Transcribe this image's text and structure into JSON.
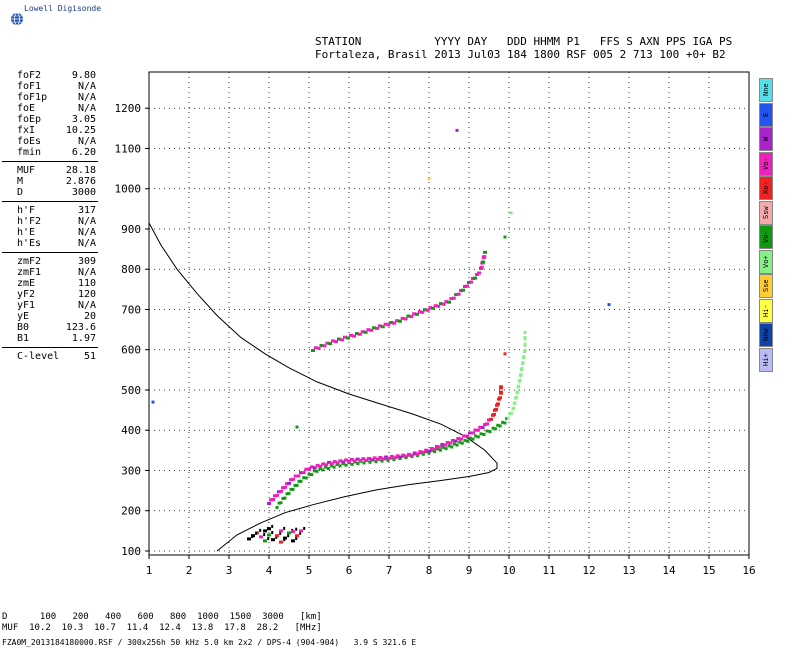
{
  "logo": {
    "text": "Lowell Digisonde",
    "icon": "globe-icon"
  },
  "header": {
    "line1": "STATION           YYYY DAY   DDD HHMM P1   FFS S AXN PPS IGA PS",
    "line2": "Fortaleza, Brasil 2013 Jul03 184 1800 RSF 005 2 713 100 +0+ B2"
  },
  "params": {
    "group1": [
      {
        "name": "foF2",
        "value": "9.80"
      },
      {
        "name": "foF1",
        "value": "N/A"
      },
      {
        "name": "foF1p",
        "value": "N/A"
      },
      {
        "name": "foE",
        "value": "N/A"
      },
      {
        "name": "foEp",
        "value": "3.05"
      },
      {
        "name": "fxI",
        "value": "10.25"
      },
      {
        "name": "foEs",
        "value": "N/A"
      },
      {
        "name": "fmin",
        "value": "6.20"
      }
    ],
    "group2": [
      {
        "name": "MUF",
        "value": "28.18"
      },
      {
        "name": "M",
        "value": "2.876"
      },
      {
        "name": "D",
        "value": "3000"
      }
    ],
    "group3": [
      {
        "name": "h'F",
        "value": "317"
      },
      {
        "name": "h'F2",
        "value": "N/A"
      },
      {
        "name": "h'E",
        "value": "N/A"
      },
      {
        "name": "h'Es",
        "value": "N/A"
      }
    ],
    "group4": [
      {
        "name": "zmF2",
        "value": "309"
      },
      {
        "name": "zmF1",
        "value": "N/A"
      },
      {
        "name": "zmE",
        "value": "110"
      },
      {
        "name": "yF2",
        "value": "120"
      },
      {
        "name": "yF1",
        "value": "N/A"
      },
      {
        "name": "yE",
        "value": "20"
      },
      {
        "name": "B0",
        "value": "123.6"
      },
      {
        "name": "B1",
        "value": "1.97"
      }
    ],
    "group5": [
      {
        "name": "C-level",
        "value": "51"
      }
    ]
  },
  "legend": [
    {
      "label": "Nne",
      "color": "#55e0e8"
    },
    {
      "label": "E",
      "color": "#2255ee"
    },
    {
      "label": "W",
      "color": "#aa22cc"
    },
    {
      "label": "Vo-",
      "color": "#ee22bb"
    },
    {
      "label": "Xo-",
      "color": "#ee2222"
    },
    {
      "label": "Ssw",
      "color": "#f4aaaa"
    },
    {
      "label": "Vo-",
      "color": "#119911"
    },
    {
      "label": "Vo+",
      "color": "#88ee88"
    },
    {
      "label": "Sse",
      "color": "#ffcc33"
    },
    {
      "label": "Hi-",
      "color": "#ffff44"
    },
    {
      "label": "Nnw",
      "color": "#1144aa"
    },
    {
      "label": "Hi+",
      "color": "#bbbbf4"
    }
  ],
  "footer": {
    "line1": "D      100   200   400   600   800  1000  1500  3000   [km]",
    "line2": "MUF  10.2  10.3  10.7  11.4  12.4  13.8  17.8  28.2   [MHz]"
  },
  "fileline": "FZA0M_2013184180000.RSF / 300x256h 50 kHz 5.0 km 2x2 / DPS-4 (904-904)   3.9 S 321.6 E",
  "chart_data": {
    "type": "scatter",
    "xlim": [
      1,
      16
    ],
    "ylim": [
      90,
      1290
    ],
    "xticks": [
      1,
      2,
      3,
      4,
      5,
      6,
      7,
      8,
      9,
      10,
      11,
      12,
      13,
      14,
      15,
      16
    ],
    "yticks": [
      100,
      200,
      300,
      400,
      500,
      600,
      700,
      800,
      900,
      1000,
      1100,
      1200
    ],
    "grid": true,
    "colors": {
      "magenta": "#ee22bb",
      "green": "#119911",
      "lightgreen": "#88ee88",
      "red": "#ee2222",
      "purple": "#aa22cc",
      "black": "#000000",
      "blue": "#2255ee",
      "yellow": "#ffcc33"
    },
    "profile": [
      [
        1.0,
        915
      ],
      [
        1.3,
        860
      ],
      [
        1.7,
        800
      ],
      [
        2.2,
        740
      ],
      [
        2.7,
        685
      ],
      [
        3.3,
        630
      ],
      [
        3.9,
        590
      ],
      [
        4.5,
        555
      ],
      [
        5.2,
        520
      ],
      [
        6.0,
        490
      ],
      [
        6.8,
        465
      ],
      [
        7.6,
        440
      ],
      [
        8.3,
        415
      ],
      [
        8.9,
        385
      ],
      [
        9.4,
        350
      ],
      [
        9.7,
        318
      ],
      [
        9.7,
        305
      ],
      [
        9.5,
        295
      ],
      [
        9.0,
        285
      ],
      [
        8.3,
        275
      ],
      [
        7.5,
        265
      ],
      [
        6.7,
        252
      ],
      [
        5.9,
        235
      ],
      [
        5.1,
        215
      ],
      [
        4.4,
        195
      ],
      [
        3.8,
        170
      ],
      [
        3.2,
        140
      ],
      [
        2.7,
        100
      ]
    ],
    "trace_lower_ordinary": [
      [
        4.0,
        220
      ],
      [
        4.3,
        250
      ],
      [
        4.6,
        280
      ],
      [
        5.0,
        305
      ],
      [
        5.5,
        318
      ],
      [
        6.0,
        325
      ],
      [
        6.5,
        328
      ],
      [
        7.0,
        332
      ],
      [
        7.5,
        338
      ],
      [
        8.0,
        350
      ],
      [
        8.4,
        365
      ],
      [
        8.8,
        380
      ],
      [
        9.1,
        395
      ],
      [
        9.4,
        412
      ],
      [
        9.6,
        435
      ],
      [
        9.7,
        460
      ],
      [
        9.8,
        490
      ],
      [
        9.8,
        510
      ]
    ],
    "trace_lower_green": [
      [
        4.2,
        210
      ],
      [
        4.5,
        245
      ],
      [
        4.8,
        275
      ],
      [
        5.2,
        300
      ],
      [
        5.7,
        312
      ],
      [
        6.3,
        320
      ],
      [
        6.9,
        326
      ],
      [
        7.5,
        335
      ],
      [
        8.0,
        345
      ],
      [
        8.5,
        358
      ],
      [
        8.9,
        372
      ],
      [
        9.3,
        388
      ],
      [
        9.6,
        402
      ],
      [
        9.9,
        420
      ],
      [
        10.1,
        450
      ],
      [
        10.2,
        490
      ],
      [
        10.3,
        540
      ],
      [
        10.4,
        600
      ],
      [
        10.4,
        640
      ]
    ],
    "trace_upper": [
      [
        5.1,
        600
      ],
      [
        5.6,
        620
      ],
      [
        6.2,
        638
      ],
      [
        6.7,
        655
      ],
      [
        7.2,
        670
      ],
      [
        7.7,
        690
      ],
      [
        8.1,
        705
      ],
      [
        8.5,
        720
      ],
      [
        8.8,
        745
      ],
      [
        9.0,
        765
      ],
      [
        9.2,
        785
      ],
      [
        9.3,
        800
      ],
      [
        9.4,
        840
      ]
    ],
    "noise_low": [
      [
        3.5,
        130
      ],
      [
        3.7,
        145
      ],
      [
        3.8,
        135
      ],
      [
        3.9,
        150
      ],
      [
        4.0,
        140
      ],
      [
        4.1,
        128
      ],
      [
        4.2,
        138
      ],
      [
        4.3,
        150
      ],
      [
        4.4,
        132
      ],
      [
        4.5,
        145
      ],
      [
        4.6,
        125
      ],
      [
        4.7,
        138
      ],
      [
        4.8,
        150
      ],
      [
        3.6,
        138
      ],
      [
        3.9,
        125
      ],
      [
        4.0,
        155
      ],
      [
        4.3,
        122
      ],
      [
        4.6,
        148
      ]
    ],
    "isolated": [
      {
        "x": 8.7,
        "y": 1145,
        "c": "purple"
      },
      {
        "x": 12.5,
        "y": 712,
        "c": "blue"
      },
      {
        "x": 1.1,
        "y": 470,
        "c": "blue"
      },
      {
        "x": 4.7,
        "y": 408,
        "c": "green"
      },
      {
        "x": 8.0,
        "y": 1025,
        "c": "yellow"
      },
      {
        "x": 9.9,
        "y": 880,
        "c": "green"
      },
      {
        "x": 10.05,
        "y": 940,
        "c": "lightgreen"
      },
      {
        "x": 9.9,
        "y": 590,
        "c": "red"
      }
    ]
  }
}
